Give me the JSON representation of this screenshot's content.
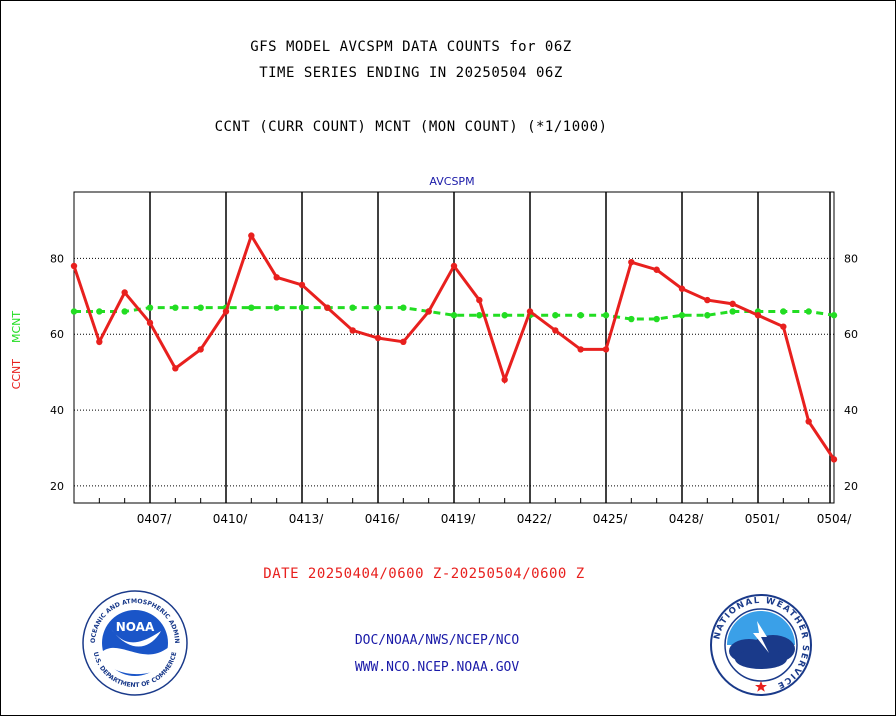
{
  "header": {
    "title_line1": "GFS MODEL AVCSPM DATA COUNTS for 06Z",
    "title_line2": "TIME SERIES ENDING IN 20250504 06Z",
    "title_line3": "CCNT (CURR COUNT) MCNT (MON COUNT) (*1/1000)"
  },
  "footer": {
    "date_range": "DATE 20250404/0600 Z-20250504/0600 Z",
    "agency": "DOC/NOAA/NWS/NCEP/NCO",
    "website": "WWW.NCO.NCEP.NOAA.GOV"
  },
  "logos": {
    "noaa_top_text": "NATIONAL OCEANIC AND ATMOSPHERIC ADMINISTRATION",
    "noaa_bottom_text": "U.S. DEPARTMENT OF COMMERCE",
    "noaa_center": "NOAA",
    "nws_text": "NATIONAL WEATHER SERVICE"
  },
  "chart_data": {
    "type": "line",
    "title": "AVCSPM",
    "ylabel_curr": "CCNT",
    "ylabel_mon": "MCNT",
    "ylim": [
      15.5,
      97.5
    ],
    "yticks": [
      20,
      40,
      60,
      80
    ],
    "xticks": [
      "0407/",
      "0410/",
      "0413/",
      "0416/",
      "0419/",
      "0422/",
      "0425/",
      "0428/",
      "0501/",
      "0504/"
    ],
    "grid": true,
    "series": [
      {
        "name": "CCNT",
        "color": "#e8201e",
        "values": [
          78,
          58,
          71,
          63,
          51,
          56,
          66,
          86,
          75,
          73,
          67,
          61,
          59,
          58,
          66,
          78,
          69,
          48,
          66,
          61,
          56,
          56,
          79,
          77,
          72,
          69,
          68,
          65,
          62,
          37,
          27
        ]
      },
      {
        "name": "MCNT",
        "color": "#22dd22",
        "values": [
          66,
          66,
          66,
          67,
          67,
          67,
          67,
          67,
          67,
          67,
          67,
          67,
          67,
          67,
          66,
          65,
          65,
          65,
          65,
          65,
          65,
          65,
          64,
          64,
          65,
          65,
          66,
          66,
          66,
          66,
          65
        ]
      }
    ]
  }
}
